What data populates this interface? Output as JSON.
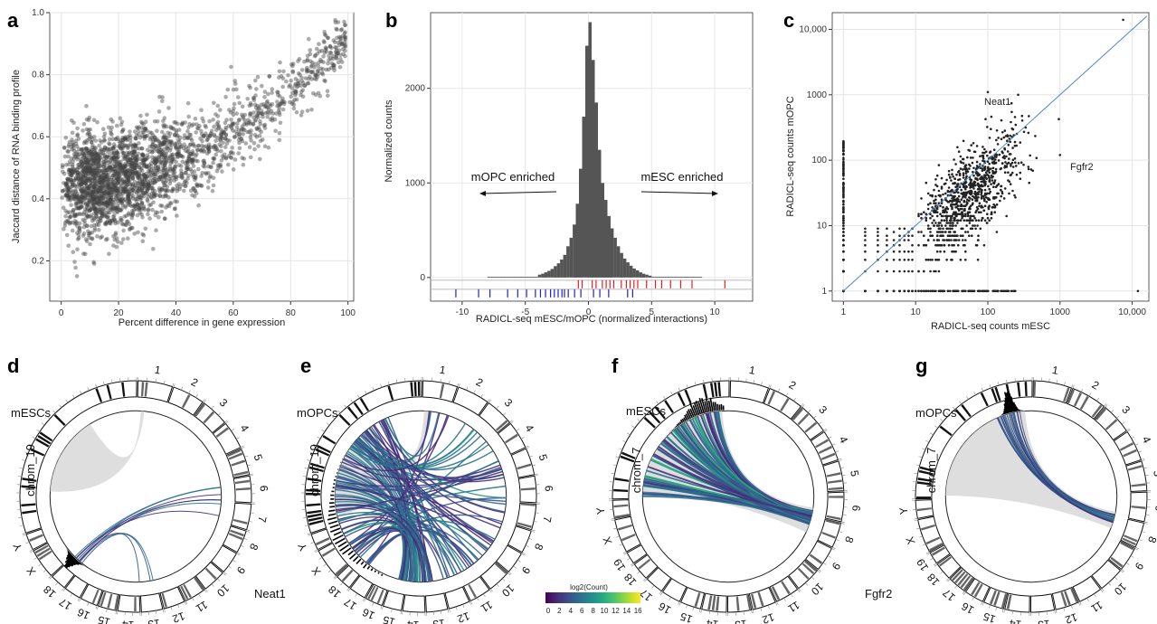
{
  "panels": {
    "a": "a",
    "b": "b",
    "c": "c",
    "d": "d",
    "e": "e",
    "f": "f",
    "g": "g"
  },
  "chart_data": [
    {
      "id": "a",
      "type": "scatter",
      "xlabel": "Percent difference in gene expression",
      "ylabel": "Jaccard distance of RNA binding profile",
      "xlim": [
        -4,
        102
      ],
      "ylim": [
        0.07,
        1.0
      ],
      "xticks": [
        0,
        20,
        40,
        60,
        80,
        100
      ],
      "yticks": [
        0.2,
        0.4,
        0.6,
        0.8,
        1.0
      ],
      "ytick_labels": [
        "0.2",
        "0.4",
        "0.6",
        "0.8",
        "1.0"
      ],
      "point_color": "#444444",
      "grid": true,
      "points_note": "~3000 genes; dense cloud at low x with y 0.3-0.6, rising trend toward (100, 0.97)",
      "trend": [
        [
          0,
          0.45
        ],
        [
          20,
          0.47
        ],
        [
          40,
          0.52
        ],
        [
          60,
          0.62
        ],
        [
          80,
          0.75
        ],
        [
          100,
          0.95
        ]
      ]
    },
    {
      "id": "b",
      "type": "bar",
      "xlabel": "RADICL-seq mESC/mOPC (normalized interactions)",
      "ylabel": "Normalized counts",
      "xlim": [
        -12.5,
        13
      ],
      "ylim": [
        -250,
        2800
      ],
      "xticks": [
        -10,
        -5,
        0,
        5,
        10
      ],
      "yticks": [
        0,
        1000,
        2000
      ],
      "bin_width": 0.25,
      "bins_left": [
        -4.0,
        -3.75,
        -3.5,
        -3.25,
        -3.0,
        -2.75,
        -2.5,
        -2.25,
        -2.0,
        -1.75,
        -1.5,
        -1.25,
        -1.0,
        -0.75,
        -0.5,
        -0.25,
        0.0,
        0.25,
        0.5,
        0.75,
        1.0,
        1.25,
        1.5,
        1.75,
        2.0,
        2.25,
        2.5,
        2.75,
        3.0,
        3.25,
        3.5,
        3.75,
        4.0,
        4.25,
        4.5,
        4.75
      ],
      "values": [
        30,
        40,
        55,
        70,
        90,
        120,
        150,
        190,
        240,
        330,
        420,
        560,
        780,
        1150,
        1700,
        2450,
        2700,
        2300,
        1850,
        1350,
        1000,
        820,
        650,
        520,
        420,
        330,
        260,
        200,
        160,
        125,
        95,
        75,
        55,
        40,
        30,
        20
      ],
      "bar_color": "#555555",
      "rug_red": [
        -0.8,
        -0.5,
        0.3,
        0.6,
        1.1,
        1.4,
        1.7,
        2.0,
        2.6,
        3.0,
        3.3,
        3.6,
        3.9,
        4.6,
        5.3,
        5.8,
        6.5,
        7.3,
        8.2,
        10.8
      ],
      "rug_blue": [
        -10.5,
        -8.7,
        -7.8,
        -6.4,
        -5.6,
        -4.9,
        -4.2,
        -3.8,
        -3.4,
        -3.0,
        -2.7,
        -2.4,
        -2.1,
        -1.9,
        -1.6,
        -1.1,
        -0.6,
        0.4,
        0.9,
        1.6,
        3.1,
        3.5
      ],
      "annotations": [
        "mOPC enriched",
        "mESC enriched"
      ]
    },
    {
      "id": "c",
      "type": "scatter",
      "scale": "log",
      "xlabel": "RADICL-seq counts mESC",
      "ylabel": "RADICL-seq counts mOPC",
      "xticks": [
        1,
        10,
        100,
        1000,
        10000
      ],
      "xtick_labels": [
        "1",
        "10",
        "100",
        "1000",
        "10,000"
      ],
      "yticks": [
        1,
        10,
        100,
        1000,
        10000
      ],
      "ytick_labels": [
        "1",
        "10",
        "100",
        "1000",
        "10,000"
      ],
      "xlim": [
        0.7,
        17000
      ],
      "ylim": [
        0.7,
        18000
      ],
      "point_color": "#222222",
      "line_color": "#4f86c6",
      "grid": true,
      "labels": [
        {
          "text": "Neat1",
          "x": 100,
          "y": 1100
        },
        {
          "text": "Fgfr2",
          "x": 1000,
          "y": 120
        }
      ],
      "named_points": [
        [
          7500,
          14000
        ],
        [
          100,
          1100
        ],
        [
          1000,
          120
        ],
        [
          12000,
          1
        ]
      ]
    },
    {
      "id": "d",
      "type": "chord",
      "sample": "mESCs",
      "focus_chrom": "chrom_19",
      "gene": "Neat1",
      "chromosomes": [
        "1",
        "2",
        "3",
        "4",
        "5",
        "6",
        "7",
        "8",
        "9",
        "10",
        "11",
        "12",
        "13",
        "14",
        "15",
        "16",
        "17",
        "18",
        "19",
        "X",
        "Y"
      ]
    },
    {
      "id": "e",
      "type": "chord",
      "sample": "mOPCs",
      "focus_chrom": "chrom_19",
      "chromosomes": [
        "1",
        "2",
        "3",
        "4",
        "5",
        "6",
        "7",
        "8",
        "9",
        "10",
        "11",
        "12",
        "13",
        "14",
        "15",
        "16",
        "17",
        "18",
        "19",
        "X",
        "Y"
      ]
    },
    {
      "id": "f",
      "type": "chord",
      "sample": "mESCs",
      "focus_chrom": "chrom_7",
      "gene": "Fgfr2",
      "chromosomes": [
        "1",
        "2",
        "3",
        "4",
        "5",
        "6",
        "7",
        "8",
        "9",
        "10",
        "11",
        "12",
        "13",
        "14",
        "15",
        "16",
        "17",
        "18",
        "19",
        "X",
        "Y"
      ]
    },
    {
      "id": "g",
      "type": "chord",
      "sample": "mOPCs",
      "focus_chrom": "chrom_7",
      "chromosomes": [
        "1",
        "2",
        "3",
        "4",
        "5",
        "6",
        "7",
        "8",
        "9",
        "10",
        "11",
        "12",
        "13",
        "14",
        "15",
        "16",
        "17",
        "18",
        "19",
        "X",
        "Y"
      ]
    }
  ],
  "colorbar": {
    "title": "log2(Count)",
    "ticks": [
      "0",
      "2",
      "4",
      "6",
      "8",
      "10",
      "12",
      "14",
      "16"
    ],
    "colors": [
      "#440154",
      "#472d7b",
      "#3b528b",
      "#2c728e",
      "#21918c",
      "#28ae80",
      "#5ec962",
      "#addc30",
      "#fde725"
    ]
  }
}
